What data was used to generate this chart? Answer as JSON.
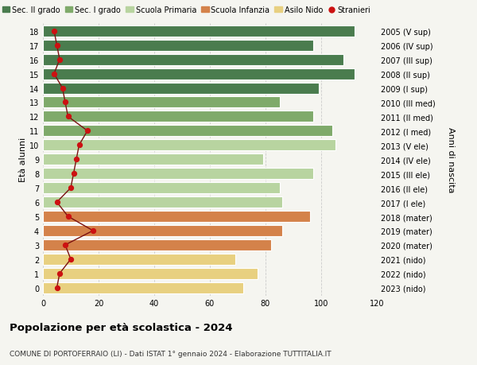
{
  "ages": [
    18,
    17,
    16,
    15,
    14,
    13,
    12,
    11,
    10,
    9,
    8,
    7,
    6,
    5,
    4,
    3,
    2,
    1,
    0
  ],
  "right_labels": [
    "2005 (V sup)",
    "2006 (IV sup)",
    "2007 (III sup)",
    "2008 (II sup)",
    "2009 (I sup)",
    "2010 (III med)",
    "2011 (II med)",
    "2012 (I med)",
    "2013 (V ele)",
    "2014 (IV ele)",
    "2015 (III ele)",
    "2016 (II ele)",
    "2017 (I ele)",
    "2018 (mater)",
    "2019 (mater)",
    "2020 (mater)",
    "2021 (nido)",
    "2022 (nido)",
    "2023 (nido)"
  ],
  "bar_values": [
    112,
    97,
    108,
    112,
    99,
    85,
    97,
    104,
    105,
    79,
    97,
    85,
    86,
    96,
    86,
    82,
    69,
    77,
    72
  ],
  "bar_colors": [
    "#4a7c4e",
    "#4a7c4e",
    "#4a7c4e",
    "#4a7c4e",
    "#4a7c4e",
    "#7faa6a",
    "#7faa6a",
    "#7faa6a",
    "#b8d4a0",
    "#b8d4a0",
    "#b8d4a0",
    "#b8d4a0",
    "#b8d4a0",
    "#d4824a",
    "#d4824a",
    "#d4824a",
    "#e8d080",
    "#e8d080",
    "#e8d080"
  ],
  "stranieri_values": [
    4,
    5,
    6,
    4,
    7,
    8,
    9,
    16,
    13,
    12,
    11,
    10,
    5,
    9,
    18,
    8,
    10,
    6,
    5
  ],
  "legend_labels": [
    "Sec. II grado",
    "Sec. I grado",
    "Scuola Primaria",
    "Scuola Infanzia",
    "Asilo Nido",
    "Stranieri"
  ],
  "legend_colors": [
    "#4a7c4e",
    "#7faa6a",
    "#b8d4a0",
    "#d4824a",
    "#e8d080",
    "#cc1111"
  ],
  "ylabel_left": "Età alunni",
  "ylabel_right": "Anni di nascita",
  "xlim": [
    0,
    120
  ],
  "xticks": [
    0,
    20,
    40,
    60,
    80,
    100,
    120
  ],
  "title": "Popolazione per età scolastica - 2024",
  "subtitle": "COMUNE DI PORTOFERRAIO (LI) - Dati ISTAT 1° gennaio 2024 - Elaborazione TUTTITALIA.IT",
  "bg_color": "#f5f5f0",
  "bar_height": 0.78,
  "stranieri_color": "#cc1111",
  "line_color": "#7a1010"
}
